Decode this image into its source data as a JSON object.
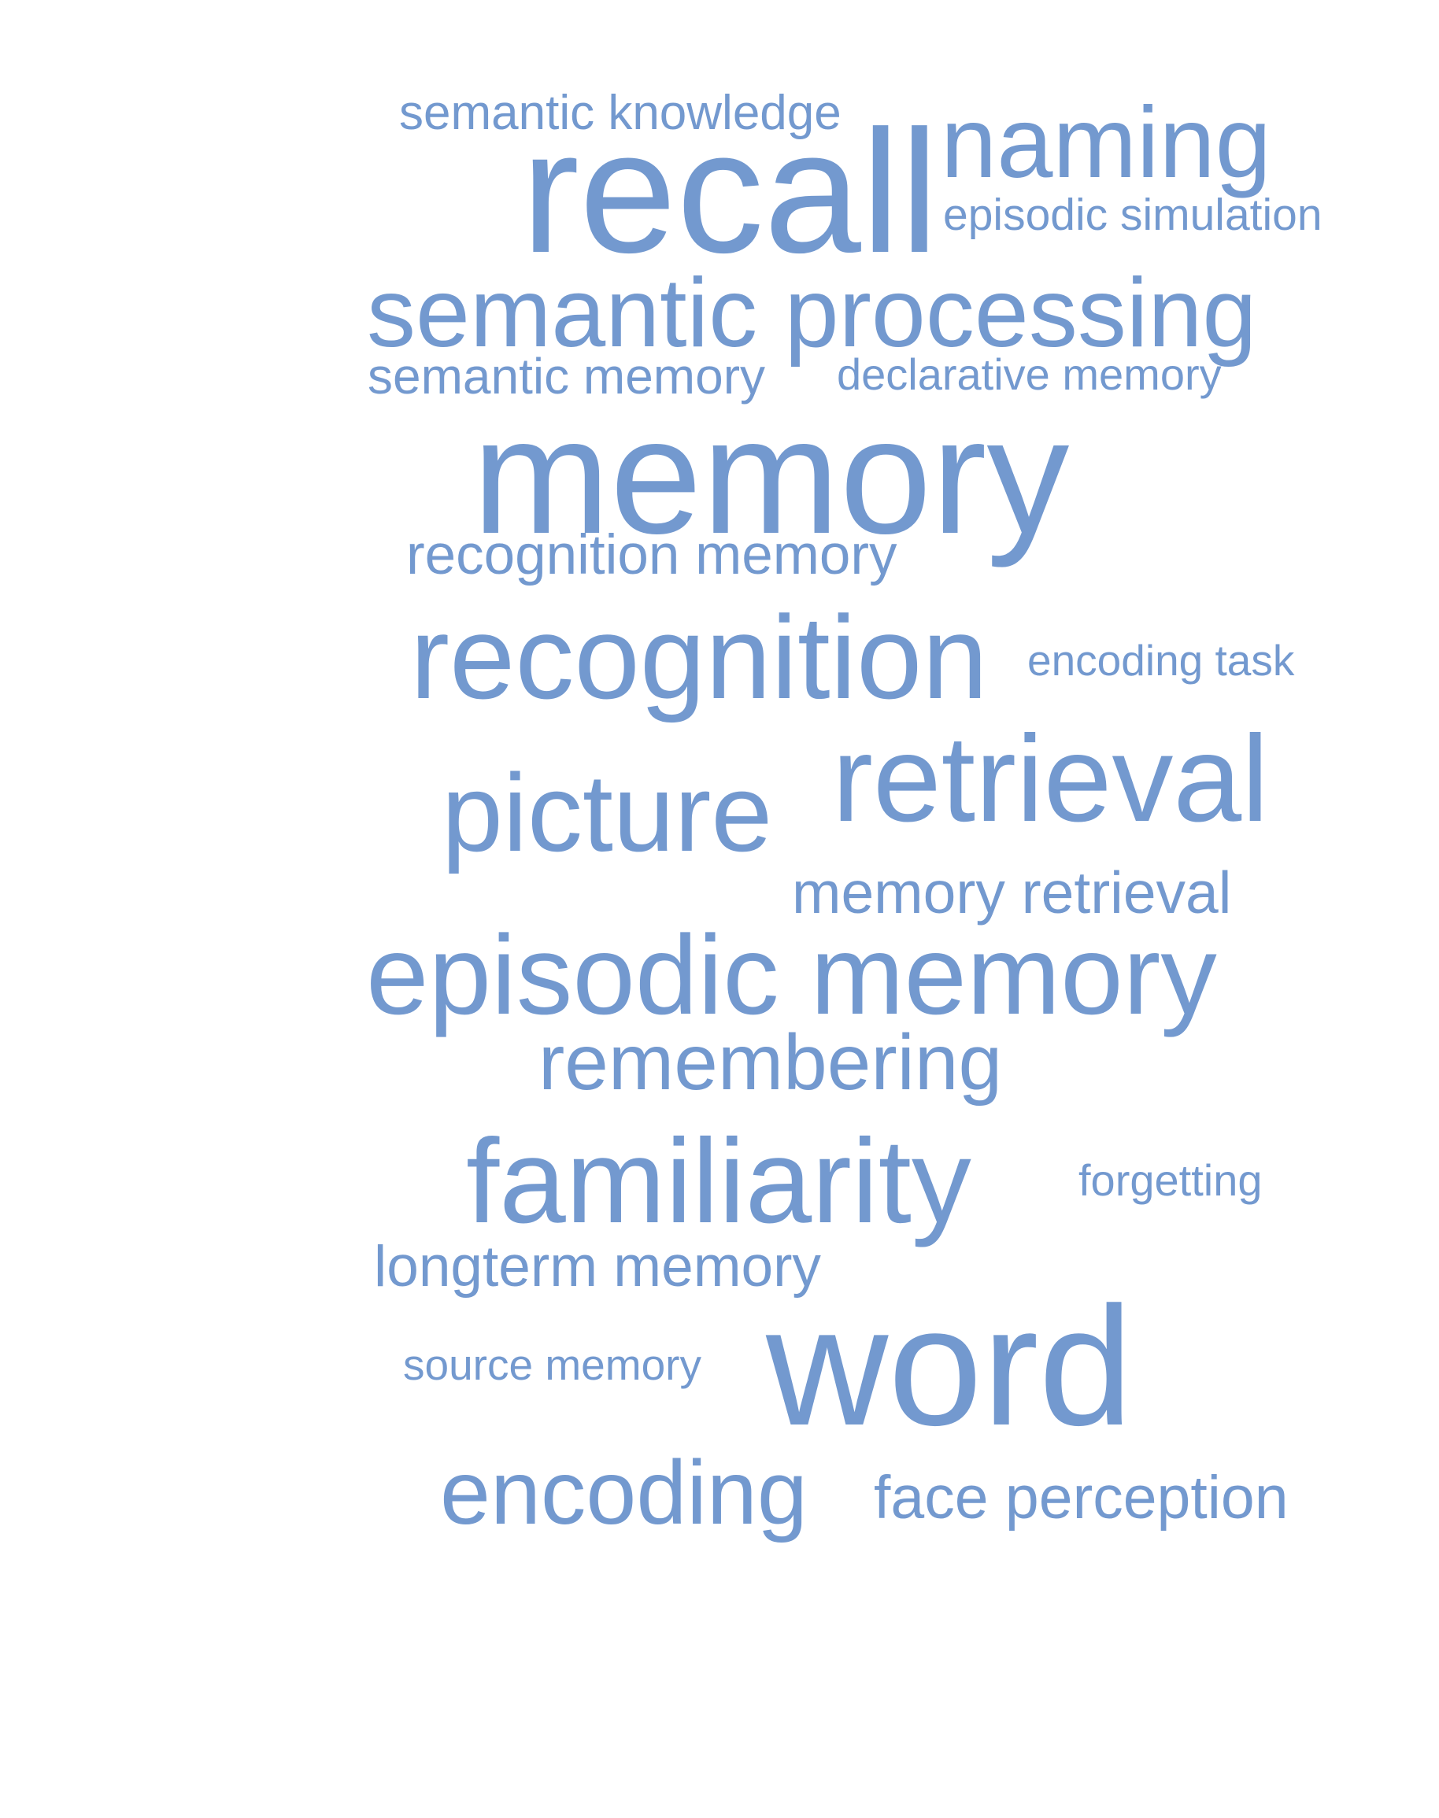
{
  "word_cloud": {
    "color": "#7399cf",
    "words": [
      {
        "text": "semantic knowledge"
      },
      {
        "text": "naming"
      },
      {
        "text": "recall"
      },
      {
        "text": "episodic simulation"
      },
      {
        "text": "semantic processing"
      },
      {
        "text": "semantic memory"
      },
      {
        "text": "declarative memory"
      },
      {
        "text": "memory"
      },
      {
        "text": "recognition memory"
      },
      {
        "text": "recognition"
      },
      {
        "text": "encoding task"
      },
      {
        "text": "retrieval"
      },
      {
        "text": "picture"
      },
      {
        "text": "memory retrieval"
      },
      {
        "text": "episodic memory"
      },
      {
        "text": "remembering"
      },
      {
        "text": "familiarity"
      },
      {
        "text": "forgetting"
      },
      {
        "text": "longterm memory"
      },
      {
        "text": "word"
      },
      {
        "text": "source memory"
      },
      {
        "text": "encoding"
      },
      {
        "text": "face perception"
      }
    ]
  }
}
